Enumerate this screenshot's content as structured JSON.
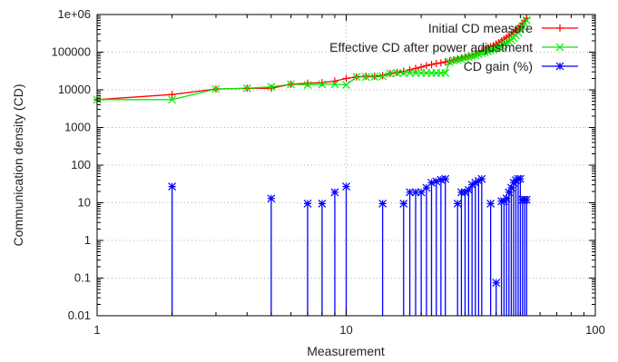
{
  "chart_data": {
    "type": "line",
    "xlabel": "Measurement",
    "ylabel": "Communication density (CD)",
    "xscale": "log",
    "yscale": "log",
    "xlim": [
      1,
      100
    ],
    "ylim": [
      0.01,
      1000000
    ],
    "xticks": [
      {
        "value": 1,
        "label": "1"
      },
      {
        "value": 10,
        "label": "10"
      },
      {
        "value": 100,
        "label": "100"
      }
    ],
    "yticks": [
      {
        "value": 0.01,
        "label": "0.01"
      },
      {
        "value": 0.1,
        "label": "0.1"
      },
      {
        "value": 1,
        "label": "1"
      },
      {
        "value": 10,
        "label": "10"
      },
      {
        "value": 100,
        "label": "100"
      },
      {
        "value": 1000,
        "label": "1000"
      },
      {
        "value": 10000,
        "label": "10000"
      },
      {
        "value": 100000,
        "label": "100000"
      },
      {
        "value": 1000000,
        "label": "1e+06"
      }
    ],
    "grid": true,
    "legend_position": "top-right",
    "series": [
      {
        "name": "Initial CD measure",
        "color": "#ff0000",
        "marker": "plus",
        "style": "linespoints",
        "x": [
          1,
          2,
          3,
          4,
          5,
          6,
          7,
          8,
          9,
          10,
          11,
          12,
          13,
          14,
          15,
          16,
          17,
          18,
          19,
          20,
          21,
          22,
          23,
          24,
          25,
          26,
          27,
          28,
          29,
          30,
          31,
          32,
          33,
          34,
          35,
          36,
          37,
          38,
          39,
          40,
          41,
          42,
          43,
          44,
          45,
          46,
          47,
          48,
          49,
          50,
          51,
          52,
          53
        ],
        "y": [
          5500,
          7500,
          10500,
          11000,
          11000,
          14000,
          15000,
          15500,
          17000,
          20000,
          22000,
          23000,
          23000,
          24000,
          27000,
          29000,
          31000,
          34000,
          37000,
          40000,
          44000,
          47000,
          50000,
          52000,
          55000,
          58000,
          62000,
          66000,
          70000,
          75000,
          80000,
          85000,
          92000,
          100000,
          110000,
          120000,
          130000,
          140000,
          150000,
          165000,
          180000,
          200000,
          220000,
          245000,
          270000,
          300000,
          340000,
          390000,
          440000,
          500000,
          580000,
          680000,
          800000
        ]
      },
      {
        "name": "Effective CD after power adjustment",
        "color": "#00ee00",
        "marker": "cross",
        "style": "linespoints",
        "x": [
          1,
          2,
          3,
          4,
          5,
          6,
          7,
          8,
          9,
          10,
          11,
          12,
          13,
          14,
          15,
          16,
          17,
          18,
          19,
          20,
          21,
          22,
          23,
          24,
          25,
          26,
          27,
          28,
          29,
          30,
          31,
          32,
          33,
          34,
          35,
          36,
          37,
          38,
          39,
          40,
          41,
          42,
          43,
          44,
          45,
          46,
          47,
          48,
          49,
          50,
          51,
          52,
          53
        ],
        "y": [
          5500,
          5500,
          10500,
          11000,
          12000,
          14000,
          13500,
          14000,
          14000,
          13500,
          22000,
          22000,
          22000,
          23000,
          27000,
          28000,
          28000,
          28000,
          28000,
          28000,
          28000,
          28000,
          28000,
          28000,
          28000,
          55000,
          60000,
          62000,
          65000,
          70000,
          74000,
          78000,
          82000,
          88000,
          95000,
          100000,
          105000,
          110000,
          115000,
          125000,
          135000,
          145000,
          160000,
          175000,
          190000,
          210000,
          240000,
          280000,
          330000,
          400000,
          480000,
          580000,
          700000
        ]
      },
      {
        "name": "CD gain (%)",
        "color": "#0000ff",
        "marker": "star",
        "style": "impulses",
        "x": [
          2,
          5,
          7,
          8,
          9,
          10,
          14,
          17,
          18,
          19,
          20,
          21,
          22,
          23,
          24,
          25,
          28,
          29,
          30,
          31,
          32,
          33,
          34,
          35,
          38,
          40,
          42,
          43,
          44,
          45,
          46,
          47,
          48,
          49,
          50,
          51,
          52,
          53
        ],
        "y": [
          27,
          13,
          9.5,
          9.5,
          19,
          27,
          9.5,
          9.5,
          19,
          19,
          19,
          25,
          34,
          37,
          41,
          43,
          9.5,
          19,
          19,
          22,
          30,
          34,
          38,
          43,
          9.5,
          0.075,
          11,
          11,
          13,
          19,
          25,
          34,
          40,
          43,
          43,
          12,
          12,
          12
        ]
      }
    ]
  }
}
